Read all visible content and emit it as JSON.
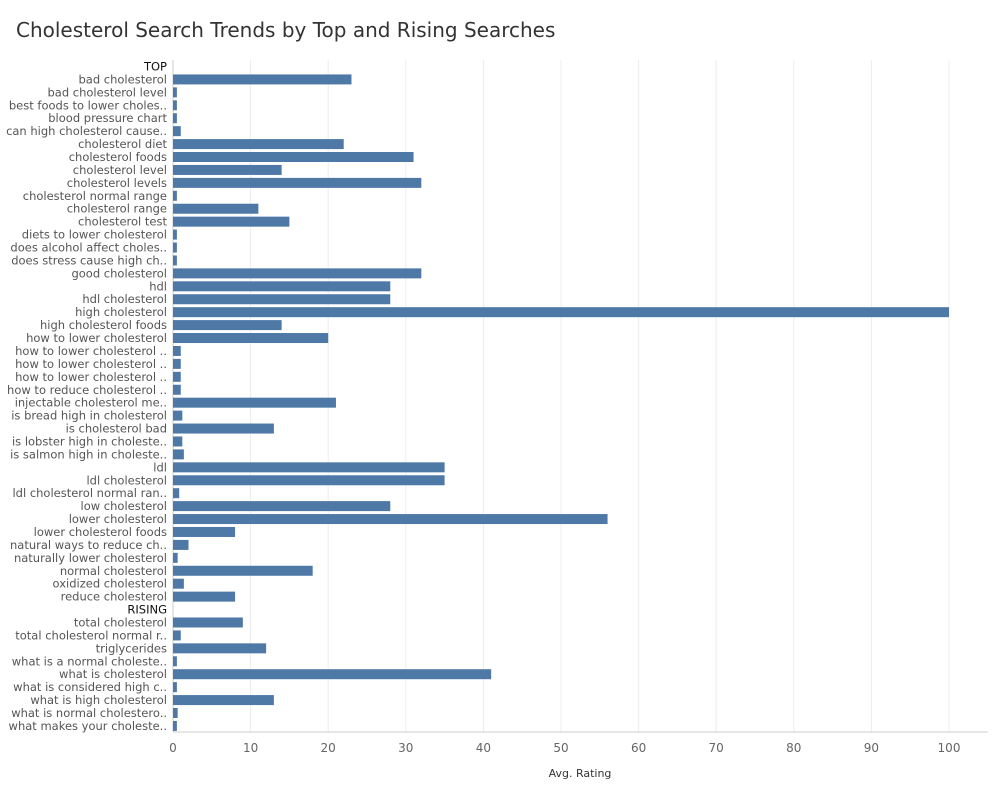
{
  "chart_data": {
    "type": "bar",
    "orientation": "horizontal",
    "title": "Cholesterol Search Trends by Top and Rising Searches",
    "xlabel": "Avg. Rating",
    "xlim": [
      0,
      105
    ],
    "xticks": [
      0,
      10,
      20,
      30,
      40,
      50,
      60,
      70,
      80,
      90,
      100
    ],
    "grid": true,
    "bar_color": "#4e79a7",
    "rows": [
      {
        "kind": "group",
        "label": "TOP"
      },
      {
        "kind": "bar",
        "label": "bad cholesterol",
        "value": 23
      },
      {
        "kind": "bar",
        "label": "bad cholesterol level",
        "value": 0.5
      },
      {
        "kind": "bar",
        "label": "best foods to lower choles..",
        "value": 0.5
      },
      {
        "kind": "bar",
        "label": "blood pressure chart",
        "value": 0.5
      },
      {
        "kind": "bar",
        "label": "can high cholesterol cause..",
        "value": 1
      },
      {
        "kind": "bar",
        "label": "cholesterol diet",
        "value": 22
      },
      {
        "kind": "bar",
        "label": "cholesterol foods",
        "value": 31
      },
      {
        "kind": "bar",
        "label": "cholesterol level",
        "value": 14
      },
      {
        "kind": "bar",
        "label": "cholesterol levels",
        "value": 32
      },
      {
        "kind": "bar",
        "label": "cholesterol normal range",
        "value": 0.5
      },
      {
        "kind": "bar",
        "label": "cholesterol range",
        "value": 11
      },
      {
        "kind": "bar",
        "label": "cholesterol test",
        "value": 15
      },
      {
        "kind": "bar",
        "label": "diets to lower cholesterol",
        "value": 0.5
      },
      {
        "kind": "bar",
        "label": "does alcohol affect choles..",
        "value": 0.5
      },
      {
        "kind": "bar",
        "label": "does stress cause high ch..",
        "value": 0.5
      },
      {
        "kind": "bar",
        "label": "good cholesterol",
        "value": 32
      },
      {
        "kind": "bar",
        "label": "hdl",
        "value": 28
      },
      {
        "kind": "bar",
        "label": "hdl cholesterol",
        "value": 28
      },
      {
        "kind": "bar",
        "label": "high cholesterol",
        "value": 100
      },
      {
        "kind": "bar",
        "label": "high cholesterol foods",
        "value": 14
      },
      {
        "kind": "bar",
        "label": "how to lower cholesterol",
        "value": 20
      },
      {
        "kind": "bar",
        "label": "how to lower cholesterol ..",
        "value": 1
      },
      {
        "kind": "bar",
        "label": "how to lower cholesterol ..",
        "value": 1
      },
      {
        "kind": "bar",
        "label": "how to lower cholesterol ..",
        "value": 1
      },
      {
        "kind": "bar",
        "label": "how to reduce cholesterol ..",
        "value": 1
      },
      {
        "kind": "bar",
        "label": "injectable cholesterol me..",
        "value": 21
      },
      {
        "kind": "bar",
        "label": "is bread high in cholesterol",
        "value": 1.2
      },
      {
        "kind": "bar",
        "label": "is cholesterol bad",
        "value": 13
      },
      {
        "kind": "bar",
        "label": "is lobster high in choleste..",
        "value": 1.2
      },
      {
        "kind": "bar",
        "label": "is salmon high in choleste..",
        "value": 1.4
      },
      {
        "kind": "bar",
        "label": "ldl",
        "value": 35
      },
      {
        "kind": "bar",
        "label": "ldl cholesterol",
        "value": 35
      },
      {
        "kind": "bar",
        "label": "ldl cholesterol normal ran..",
        "value": 0.8
      },
      {
        "kind": "bar",
        "label": "low cholesterol",
        "value": 28
      },
      {
        "kind": "bar",
        "label": "lower cholesterol",
        "value": 56
      },
      {
        "kind": "bar",
        "label": "lower cholesterol foods",
        "value": 8
      },
      {
        "kind": "bar",
        "label": "natural ways to reduce ch..",
        "value": 2
      },
      {
        "kind": "bar",
        "label": "naturally lower cholesterol",
        "value": 0.6
      },
      {
        "kind": "bar",
        "label": "normal cholesterol",
        "value": 18
      },
      {
        "kind": "bar",
        "label": "oxidized cholesterol",
        "value": 1.4
      },
      {
        "kind": "bar",
        "label": "reduce cholesterol",
        "value": 8
      },
      {
        "kind": "group",
        "label": "RISING"
      },
      {
        "kind": "bar",
        "label": "total cholesterol",
        "value": 9
      },
      {
        "kind": "bar",
        "label": "total cholesterol normal r..",
        "value": 1
      },
      {
        "kind": "bar",
        "label": "triglycerides",
        "value": 12
      },
      {
        "kind": "bar",
        "label": "what is a normal choleste..",
        "value": 0.5
      },
      {
        "kind": "bar",
        "label": "what is cholesterol",
        "value": 41
      },
      {
        "kind": "bar",
        "label": "what is considered high c..",
        "value": 0.5
      },
      {
        "kind": "bar",
        "label": "what is high cholesterol",
        "value": 13
      },
      {
        "kind": "bar",
        "label": "what is normal cholestero..",
        "value": 0.6
      },
      {
        "kind": "bar",
        "label": "what makes your choleste..",
        "value": 0.5
      }
    ]
  }
}
